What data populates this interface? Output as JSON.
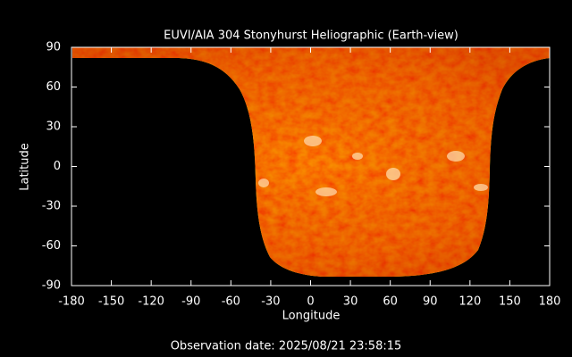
{
  "chart_data": {
    "type": "image",
    "title": "EUVI/AIA 304 Stonyhurst Heliographic (Earth-view)",
    "x_label": "Longitude",
    "y_label": "Latitude",
    "xlim": [
      -180,
      180
    ],
    "ylim": [
      -90,
      90
    ],
    "xticks": [
      -180,
      -150,
      -120,
      -90,
      -60,
      -30,
      0,
      30,
      60,
      90,
      120,
      150,
      180
    ],
    "yticks": [
      -90,
      -60,
      -30,
      0,
      30,
      60,
      90
    ],
    "annotation": "Observation date: 2025/08/21 23:58:15"
  }
}
